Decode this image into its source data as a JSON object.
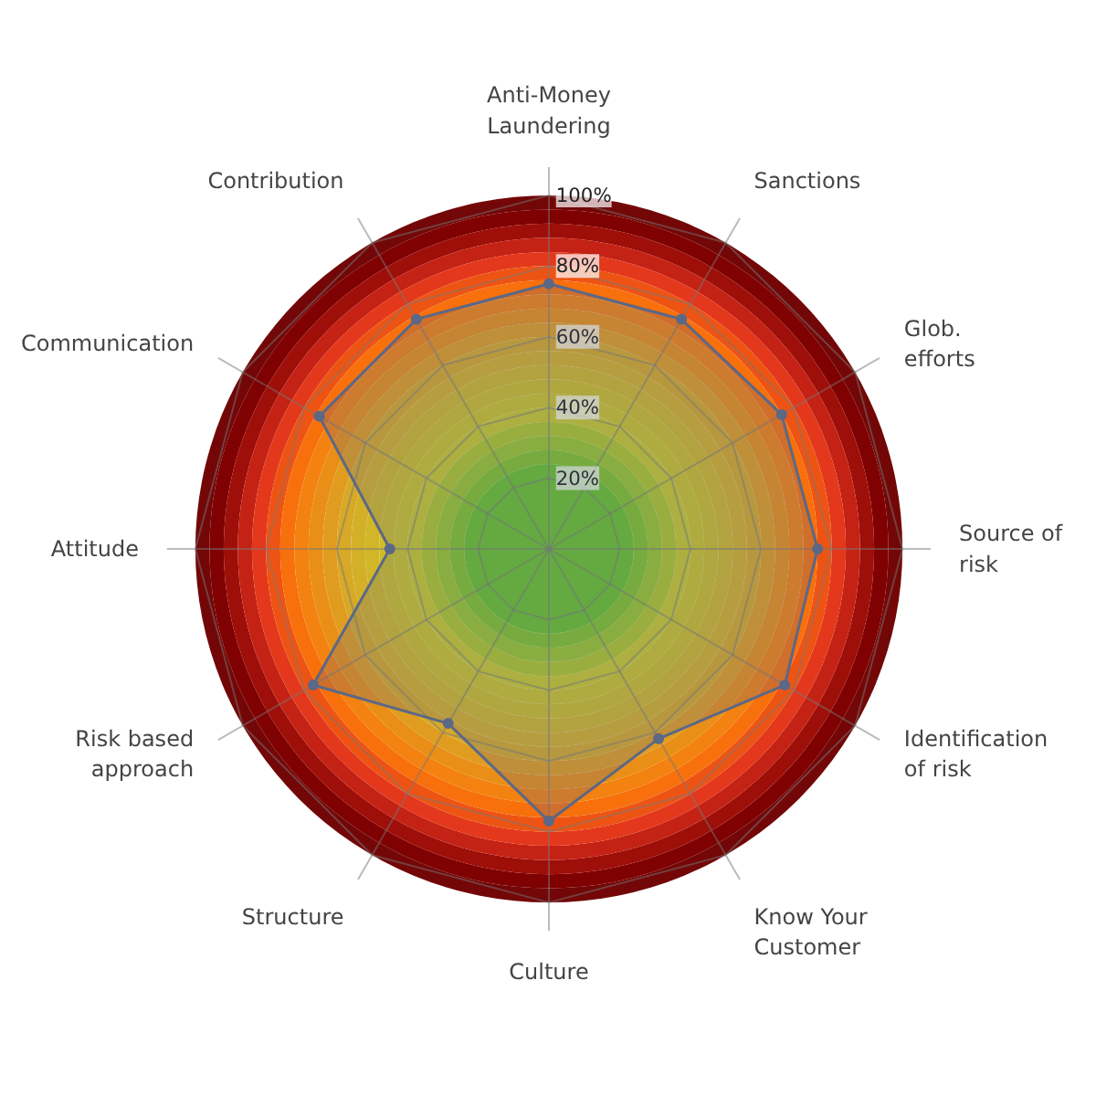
{
  "chart_data": {
    "type": "radar",
    "categories": [
      "Anti-Money Laundering",
      "Sanctions",
      "Glob. efforts",
      "Source of risk",
      "Identification of risk",
      "Know Your Customer",
      "Culture",
      "Structure",
      "Risk based approach",
      "Attitude",
      "Communication",
      "Contribution"
    ],
    "series": [
      {
        "color": "#5b6886",
        "values": [
          75,
          75,
          76,
          76,
          77,
          62,
          77,
          57,
          77,
          45,
          75,
          75
        ]
      }
    ],
    "ylim": [
      0,
      100
    ],
    "yticks": [
      {
        "value": 20,
        "label": "20%"
      },
      {
        "value": 40,
        "label": "40%"
      },
      {
        "value": 60,
        "label": "60%"
      },
      {
        "value": 80,
        "label": "80%"
      },
      {
        "value": 100,
        "label": "100%"
      }
    ],
    "grid": true,
    "marker": "circle",
    "legend": false
  }
}
